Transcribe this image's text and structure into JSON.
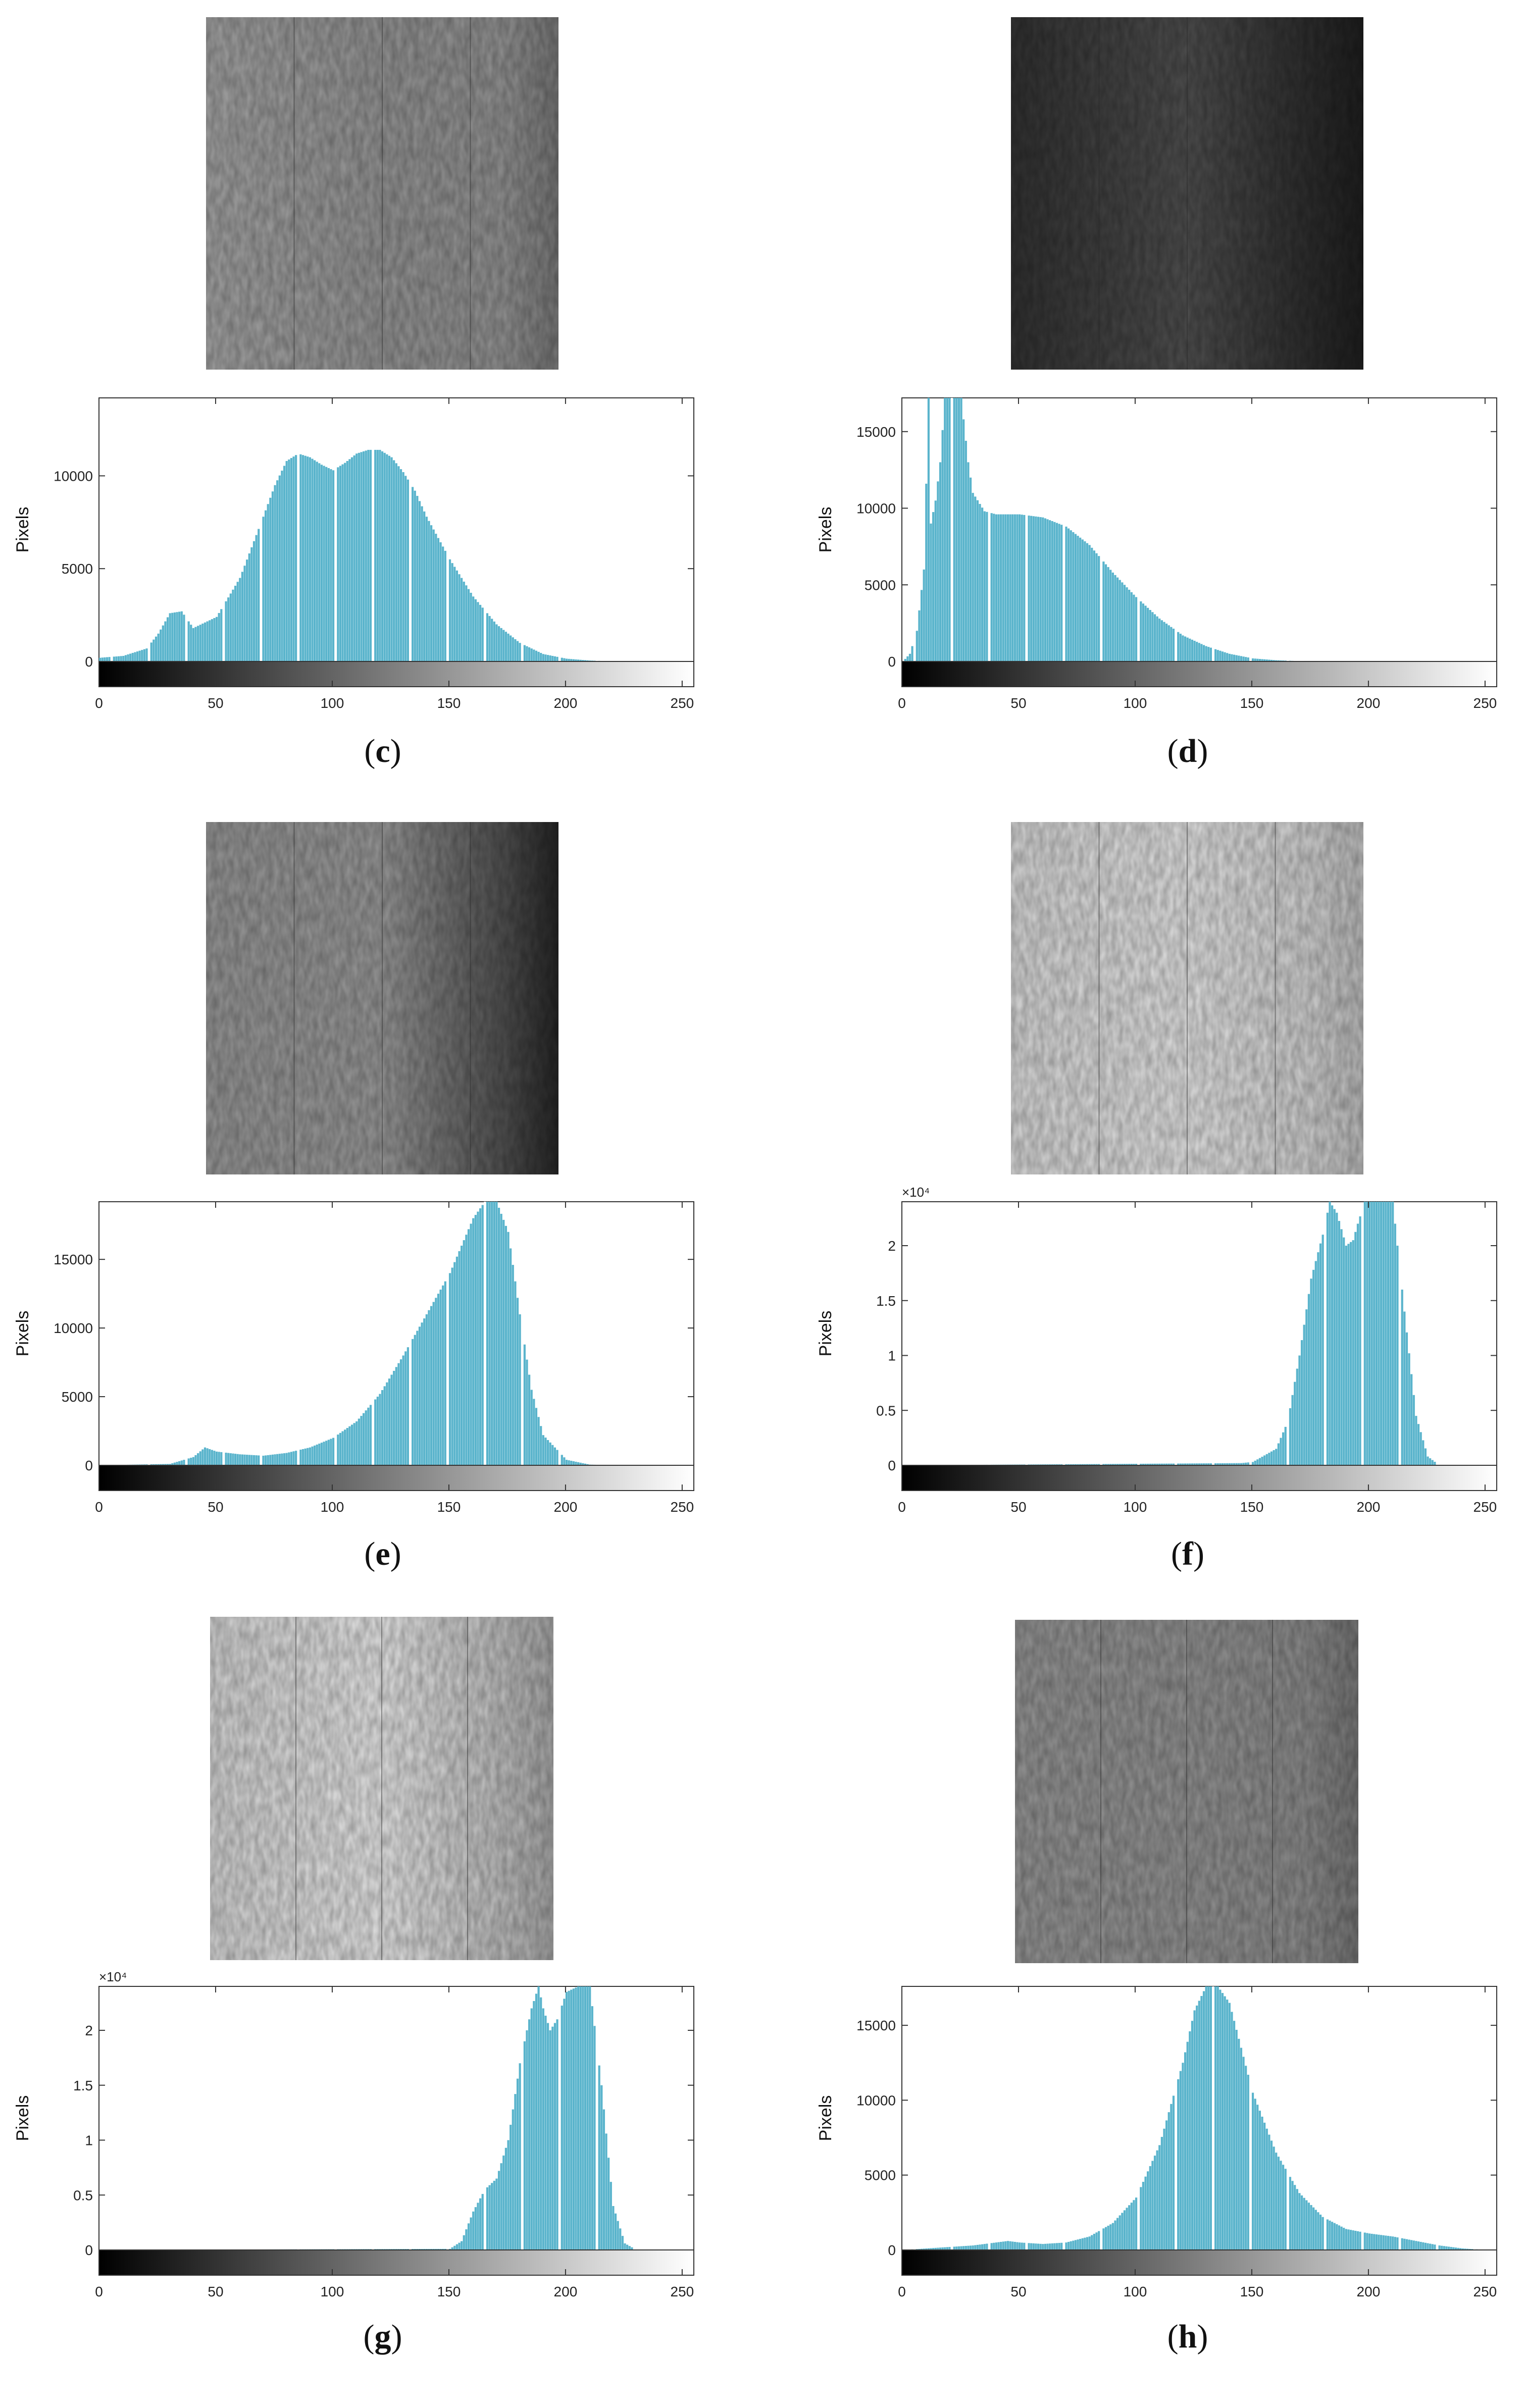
{
  "figure": {
    "panels": [
      {
        "id": "c",
        "caption_label": "c",
        "image_style": {
          "base": "#8c8c8c",
          "left": "#9a9a9a",
          "right": "#8a8a8a",
          "edge": "#6f6f6f"
        },
        "chart_data": {
          "type": "histogram",
          "title": "",
          "xlabel": "",
          "ylabel": "Pixels",
          "xlim": [
            0,
            255
          ],
          "ylim": [
            0,
            14200
          ],
          "x_ticks": [
            0,
            50,
            100,
            150,
            200,
            250
          ],
          "y_ticks": [
            0,
            5000,
            10000
          ],
          "y_tick_labels": [
            "0",
            "5000",
            "10000"
          ],
          "y_exponent": "",
          "bar_color": "#5ab4cc",
          "x": [
            0,
            10,
            20,
            25,
            30,
            35,
            40,
            50,
            60,
            70,
            75,
            80,
            85,
            90,
            95,
            100,
            105,
            110,
            115,
            120,
            125,
            130,
            135,
            140,
            150,
            160,
            170,
            180,
            190,
            200,
            210,
            220
          ],
          "values": [
            200,
            300,
            700,
            1500,
            2600,
            2700,
            1800,
            2400,
            4500,
            7800,
            9500,
            10800,
            11200,
            11000,
            10600,
            10300,
            10700,
            11200,
            11400,
            11400,
            11000,
            10200,
            9200,
            7800,
            5500,
            3500,
            2000,
            1000,
            400,
            150,
            50,
            0
          ]
        }
      },
      {
        "id": "d",
        "caption_label": "d",
        "image_style": {
          "base": "#4a4a4a",
          "left": "#2e2e2e",
          "right": "#2a2a2a",
          "edge": "#1c1c1c"
        },
        "chart_data": {
          "type": "histogram",
          "title": "",
          "xlabel": "",
          "ylabel": "Pixels",
          "xlim": [
            0,
            255
          ],
          "ylim": [
            0,
            17200
          ],
          "x_ticks": [
            0,
            50,
            100,
            150,
            200,
            250
          ],
          "y_ticks": [
            0,
            5000,
            10000,
            15000
          ],
          "y_tick_labels": [
            "0",
            "5000",
            "10000",
            "15000"
          ],
          "y_exponent": "",
          "bar_color": "#5ab4cc",
          "x": [
            0,
            3,
            6,
            9,
            11,
            12,
            14,
            16,
            18,
            20,
            22,
            25,
            28,
            30,
            35,
            40,
            50,
            60,
            70,
            80,
            90,
            100,
            110,
            120,
            130,
            140,
            150,
            160,
            170,
            180
          ],
          "values": [
            0,
            500,
            2000,
            6000,
            17200,
            9000,
            10500,
            13000,
            17200,
            17200,
            17200,
            17200,
            13000,
            11000,
            9800,
            9600,
            9600,
            9400,
            8800,
            7600,
            5800,
            4200,
            2800,
            1700,
            1000,
            500,
            200,
            80,
            20,
            0
          ]
        }
      },
      {
        "id": "e",
        "caption_label": "e",
        "image_style": {
          "base": "#909090",
          "left": "#8e8e8e",
          "right": "#4a4a4a",
          "edge": "#222222"
        },
        "chart_data": {
          "type": "histogram",
          "title": "",
          "xlabel": "",
          "ylabel": "Pixels",
          "xlim": [
            0,
            255
          ],
          "ylim": [
            0,
            19200
          ],
          "x_ticks": [
            0,
            50,
            100,
            150,
            200,
            250
          ],
          "y_ticks": [
            0,
            5000,
            10000,
            15000
          ],
          "y_tick_labels": [
            "0",
            "5000",
            "10000",
            "15000"
          ],
          "y_exponent": "",
          "bar_color": "#5ab4cc",
          "x": [
            0,
            30,
            40,
            45,
            50,
            60,
            70,
            80,
            90,
            100,
            110,
            120,
            130,
            140,
            150,
            155,
            160,
            165,
            170,
            175,
            180,
            185,
            190,
            200,
            210,
            220
          ],
          "values": [
            0,
            100,
            600,
            1300,
            1000,
            800,
            700,
            900,
            1300,
            2000,
            3200,
            5200,
            8000,
            11000,
            14000,
            16000,
            18000,
            19200,
            19200,
            17000,
            11000,
            5500,
            2200,
            400,
            50,
            0
          ]
        }
      },
      {
        "id": "f",
        "caption_label": "f",
        "image_style": {
          "base": "#d6d6d6",
          "left": "#cbcbcb",
          "right": "#c4c4c4",
          "edge": "#b0b0b0"
        },
        "chart_data": {
          "type": "histogram",
          "title": "",
          "xlabel": "",
          "ylabel": "Pixels",
          "xlim": [
            0,
            255
          ],
          "ylim": [
            0,
            24000
          ],
          "x_ticks": [
            0,
            50,
            100,
            150,
            200,
            250
          ],
          "y_ticks": [
            0,
            5000,
            10000,
            15000,
            20000
          ],
          "y_tick_labels": [
            "0",
            "0.5",
            "1",
            "1.5",
            "2"
          ],
          "y_exponent": "×10⁴",
          "bar_color": "#5ab4cc",
          "x": [
            0,
            145,
            150,
            160,
            165,
            170,
            175,
            180,
            183,
            186,
            188,
            190,
            193,
            195,
            198,
            200,
            205,
            210,
            215,
            220,
            225,
            230
          ],
          "values": [
            0,
            200,
            300,
            1500,
            4000,
            10000,
            17000,
            21000,
            24000,
            23000,
            21500,
            20000,
            20500,
            22000,
            24000,
            24000,
            24000,
            24000,
            14000,
            4500,
            800,
            0
          ]
        }
      },
      {
        "id": "g",
        "caption_label": "g",
        "image_style": {
          "base": "#d9d9d9",
          "left": "#c8c8c8",
          "right": "#b4b4b4",
          "edge": "#9c9c9c"
        },
        "chart_data": {
          "type": "histogram",
          "title": "",
          "xlabel": "",
          "ylabel": "Pixels",
          "xlim": [
            0,
            255
          ],
          "ylim": [
            0,
            24000
          ],
          "x_ticks": [
            0,
            50,
            100,
            150,
            200,
            250
          ],
          "y_ticks": [
            0,
            5000,
            10000,
            15000,
            20000
          ],
          "y_tick_labels": [
            "0",
            "0.5",
            "1",
            "1.5",
            "2"
          ],
          "y_exponent": "×10⁴",
          "bar_color": "#5ab4cc",
          "x": [
            0,
            150,
            155,
            160,
            165,
            170,
            175,
            180,
            185,
            188,
            190,
            193,
            196,
            200,
            205,
            210,
            215,
            220,
            225,
            230
          ],
          "values": [
            0,
            100,
            800,
            3500,
            5500,
            6500,
            10000,
            17000,
            22000,
            24000,
            22000,
            20000,
            21000,
            23500,
            24000,
            24000,
            15000,
            4000,
            600,
            0
          ]
        }
      },
      {
        "id": "h",
        "caption_label": "h",
        "image_style": {
          "base": "#8a8a8a",
          "left": "#8c8c8c",
          "right": "#848484",
          "edge": "#6e6e6e"
        },
        "chart_data": {
          "type": "histogram",
          "title": "",
          "xlabel": "",
          "ylabel": "Pixels",
          "xlim": [
            0,
            255
          ],
          "ylim": [
            0,
            17600
          ],
          "x_ticks": [
            0,
            50,
            100,
            150,
            200,
            250
          ],
          "y_ticks": [
            0,
            5000,
            10000,
            15000
          ],
          "y_tick_labels": [
            "0",
            "5000",
            "10000",
            "15000"
          ],
          "y_exponent": "",
          "bar_color": "#5ab4cc",
          "x": [
            0,
            10,
            20,
            30,
            40,
            45,
            50,
            60,
            70,
            80,
            90,
            100,
            110,
            120,
            125,
            130,
            135,
            140,
            145,
            150,
            160,
            170,
            180,
            190,
            200,
            210,
            220,
            230,
            240,
            250
          ],
          "values": [
            0,
            100,
            200,
            300,
            500,
            600,
            500,
            400,
            500,
            900,
            1800,
            3500,
            7000,
            12500,
            16000,
            17600,
            17600,
            16500,
            13500,
            10500,
            6500,
            3800,
            2200,
            1400,
            1100,
            900,
            600,
            300,
            100,
            0
          ]
        }
      }
    ]
  }
}
